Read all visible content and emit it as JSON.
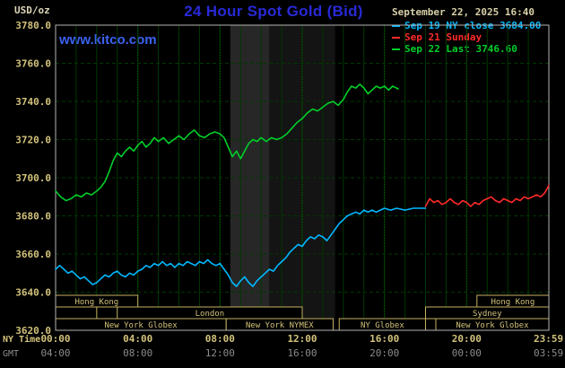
{
  "header": {
    "unit_label": "USD/oz",
    "title": "24 Hour Spot Gold (Bid)",
    "datetime": "September 22, 2025 16:40",
    "watermark": "www.kitco.com"
  },
  "legend": {
    "items": [
      {
        "label": "Sep 19 NY close 3684.00",
        "color": "#00b8ff"
      },
      {
        "label": "Sep 21 Sunday",
        "color": "#ff2a2a"
      },
      {
        "label": "Sep 22 Last 3746.60",
        "color": "#00d02a"
      }
    ]
  },
  "colors": {
    "title": "#2929d6",
    "watermark": "#3b62f0",
    "datetime_text": "#d8d0a8",
    "axis_text": "#d2c27a",
    "gmt_text": "#8c8c8c",
    "border": "#b4b4b4",
    "background": "#000000"
  },
  "chart_data": {
    "type": "line",
    "title": "24 Hour Spot Gold (Bid)",
    "ylabel": "USD/oz",
    "ylim": [
      3620,
      3780
    ],
    "ytick_step": 20,
    "ytick_labels": [
      "3620.0",
      "3640.0",
      "3660.0",
      "3680.0",
      "3700.0",
      "3720.0",
      "3740.0",
      "3760.0",
      "3780.0"
    ],
    "xlim_hours": [
      0,
      24
    ],
    "x_major_ticks": [
      0,
      4,
      8,
      12,
      16,
      20,
      23.9833
    ],
    "ny_time_labels": [
      "00:00",
      "04:00",
      "08:00",
      "12:00",
      "16:00",
      "20:00",
      "23:59"
    ],
    "gmt_labels": [
      "04:00",
      "08:00",
      "12:00",
      "16:00",
      "20:00",
      "00:00",
      "03:59"
    ],
    "axis_row_labels": {
      "ny": "NY Time",
      "gmt": "GMT"
    },
    "grid_color": "#003800",
    "grid_major_color": "#006a00",
    "bands": [
      {
        "start": 8.5,
        "end": 10.4,
        "color": "#272727"
      },
      {
        "start": 10.4,
        "end": 13.6,
        "color": "#141414"
      }
    ],
    "series": [
      {
        "name": "Sep 19 NY close",
        "color": "#00b8ff",
        "points": [
          [
            0,
            3652
          ],
          [
            0.2,
            3654
          ],
          [
            0.4,
            3652
          ],
          [
            0.6,
            3650
          ],
          [
            0.8,
            3651
          ],
          [
            1,
            3649
          ],
          [
            1.2,
            3647
          ],
          [
            1.4,
            3648
          ],
          [
            1.6,
            3646
          ],
          [
            1.8,
            3644
          ],
          [
            2,
            3645
          ],
          [
            2.2,
            3647
          ],
          [
            2.4,
            3649
          ],
          [
            2.6,
            3648
          ],
          [
            2.8,
            3650
          ],
          [
            3,
            3651
          ],
          [
            3.2,
            3649
          ],
          [
            3.4,
            3648
          ],
          [
            3.6,
            3650
          ],
          [
            3.8,
            3649
          ],
          [
            4,
            3651
          ],
          [
            4.2,
            3652
          ],
          [
            4.4,
            3654
          ],
          [
            4.6,
            3653
          ],
          [
            4.8,
            3655
          ],
          [
            5,
            3654
          ],
          [
            5.2,
            3656
          ],
          [
            5.4,
            3654
          ],
          [
            5.6,
            3655
          ],
          [
            5.8,
            3653
          ],
          [
            6,
            3655
          ],
          [
            6.2,
            3654
          ],
          [
            6.4,
            3656
          ],
          [
            6.6,
            3655
          ],
          [
            6.8,
            3654
          ],
          [
            7,
            3656
          ],
          [
            7.2,
            3655
          ],
          [
            7.4,
            3657
          ],
          [
            7.6,
            3655
          ],
          [
            7.8,
            3654
          ],
          [
            8,
            3655
          ],
          [
            8.2,
            3652
          ],
          [
            8.4,
            3649
          ],
          [
            8.6,
            3645
          ],
          [
            8.8,
            3643
          ],
          [
            9,
            3646
          ],
          [
            9.2,
            3648
          ],
          [
            9.4,
            3645
          ],
          [
            9.6,
            3643
          ],
          [
            9.8,
            3646
          ],
          [
            10,
            3648
          ],
          [
            10.2,
            3650
          ],
          [
            10.4,
            3652
          ],
          [
            10.6,
            3651
          ],
          [
            10.8,
            3654
          ],
          [
            11,
            3656
          ],
          [
            11.2,
            3658
          ],
          [
            11.4,
            3661
          ],
          [
            11.6,
            3663
          ],
          [
            11.8,
            3665
          ],
          [
            12,
            3664
          ],
          [
            12.2,
            3667
          ],
          [
            12.4,
            3669
          ],
          [
            12.6,
            3668
          ],
          [
            12.8,
            3670
          ],
          [
            13,
            3669
          ],
          [
            13.2,
            3667
          ],
          [
            13.4,
            3670
          ],
          [
            13.6,
            3673
          ],
          [
            13.8,
            3676
          ],
          [
            14,
            3678
          ],
          [
            14.2,
            3680
          ],
          [
            14.4,
            3681
          ],
          [
            14.6,
            3682
          ],
          [
            14.8,
            3681
          ],
          [
            15,
            3683
          ],
          [
            15.2,
            3682
          ],
          [
            15.4,
            3683
          ],
          [
            15.6,
            3682
          ],
          [
            15.8,
            3683
          ],
          [
            16,
            3684
          ],
          [
            16.3,
            3683
          ],
          [
            16.6,
            3684
          ],
          [
            17,
            3683
          ],
          [
            17.4,
            3684
          ],
          [
            17.7,
            3684
          ],
          [
            18,
            3684
          ]
        ]
      },
      {
        "name": "Sep 21 Sunday",
        "color": "#ff2a2a",
        "points": [
          [
            18,
            3685
          ],
          [
            18.2,
            3689
          ],
          [
            18.4,
            3687
          ],
          [
            18.6,
            3688
          ],
          [
            18.8,
            3686
          ],
          [
            19,
            3687
          ],
          [
            19.2,
            3689
          ],
          [
            19.4,
            3687
          ],
          [
            19.6,
            3686
          ],
          [
            19.8,
            3688
          ],
          [
            20,
            3687
          ],
          [
            20.2,
            3685
          ],
          [
            20.4,
            3687
          ],
          [
            20.6,
            3686
          ],
          [
            20.8,
            3688
          ],
          [
            21,
            3689
          ],
          [
            21.2,
            3690
          ],
          [
            21.4,
            3688
          ],
          [
            21.6,
            3687
          ],
          [
            21.8,
            3689
          ],
          [
            22,
            3688
          ],
          [
            22.2,
            3687
          ],
          [
            22.4,
            3689
          ],
          [
            22.6,
            3688
          ],
          [
            22.8,
            3690
          ],
          [
            23,
            3689
          ],
          [
            23.2,
            3690
          ],
          [
            23.4,
            3691
          ],
          [
            23.6,
            3690
          ],
          [
            23.8,
            3692
          ],
          [
            24,
            3696
          ]
        ]
      },
      {
        "name": "Sep 22 Last",
        "color": "#00d02a",
        "points": [
          [
            0,
            3693
          ],
          [
            0.25,
            3690
          ],
          [
            0.5,
            3688
          ],
          [
            0.75,
            3689
          ],
          [
            1,
            3691
          ],
          [
            1.25,
            3690
          ],
          [
            1.5,
            3692
          ],
          [
            1.75,
            3691
          ],
          [
            2,
            3693
          ],
          [
            2.2,
            3695
          ],
          [
            2.4,
            3698
          ],
          [
            2.6,
            3703
          ],
          [
            2.8,
            3709
          ],
          [
            3,
            3713
          ],
          [
            3.2,
            3711
          ],
          [
            3.4,
            3714
          ],
          [
            3.6,
            3716
          ],
          [
            3.8,
            3714
          ],
          [
            4,
            3717
          ],
          [
            4.2,
            3719
          ],
          [
            4.4,
            3716
          ],
          [
            4.6,
            3718
          ],
          [
            4.8,
            3721
          ],
          [
            5,
            3719
          ],
          [
            5.25,
            3721
          ],
          [
            5.5,
            3718
          ],
          [
            5.75,
            3720
          ],
          [
            6,
            3722
          ],
          [
            6.25,
            3720
          ],
          [
            6.5,
            3723
          ],
          [
            6.75,
            3725
          ],
          [
            7,
            3722
          ],
          [
            7.25,
            3721
          ],
          [
            7.5,
            3723
          ],
          [
            7.75,
            3724
          ],
          [
            8,
            3723
          ],
          [
            8.2,
            3721
          ],
          [
            8.4,
            3716
          ],
          [
            8.6,
            3711
          ],
          [
            8.8,
            3714
          ],
          [
            9,
            3710
          ],
          [
            9.2,
            3714
          ],
          [
            9.4,
            3718
          ],
          [
            9.6,
            3720
          ],
          [
            9.8,
            3719
          ],
          [
            10,
            3721
          ],
          [
            10.25,
            3719
          ],
          [
            10.5,
            3721
          ],
          [
            10.75,
            3720
          ],
          [
            11,
            3721
          ],
          [
            11.25,
            3723
          ],
          [
            11.5,
            3726
          ],
          [
            11.75,
            3729
          ],
          [
            12,
            3731
          ],
          [
            12.25,
            3734
          ],
          [
            12.5,
            3736
          ],
          [
            12.75,
            3735
          ],
          [
            13,
            3737
          ],
          [
            13.25,
            3739
          ],
          [
            13.5,
            3740
          ],
          [
            13.75,
            3738
          ],
          [
            14,
            3741
          ],
          [
            14.2,
            3745
          ],
          [
            14.4,
            3748
          ],
          [
            14.6,
            3747
          ],
          [
            14.8,
            3749
          ],
          [
            15,
            3747
          ],
          [
            15.2,
            3744
          ],
          [
            15.4,
            3746
          ],
          [
            15.6,
            3748
          ],
          [
            15.8,
            3747
          ],
          [
            16,
            3748
          ],
          [
            16.2,
            3746
          ],
          [
            16.4,
            3748
          ],
          [
            16.67,
            3746.6
          ]
        ]
      }
    ],
    "sessions": {
      "box_color": "#c4b060",
      "text_color": "#d2c27a",
      "rows": [
        [
          {
            "label": "Hong Kong",
            "start": 0,
            "end": 4
          },
          {
            "label": "Hong Kong",
            "start": 20.5,
            "end": 24
          }
        ],
        [
          {
            "label": "",
            "start": 0,
            "end": 2
          },
          {
            "label": "London",
            "start": 3,
            "end": 12
          },
          {
            "label": "Sydney",
            "start": 18,
            "end": 24
          }
        ],
        [
          {
            "label": "New York Globex",
            "start": 0,
            "end": 8.3
          },
          {
            "label": "New York NYMEX",
            "start": 8.3,
            "end": 13.5
          },
          {
            "label": "NY Globex",
            "start": 13.8,
            "end": 18
          },
          {
            "label": "New York Globex",
            "start": 18.5,
            "end": 24
          }
        ]
      ]
    }
  }
}
